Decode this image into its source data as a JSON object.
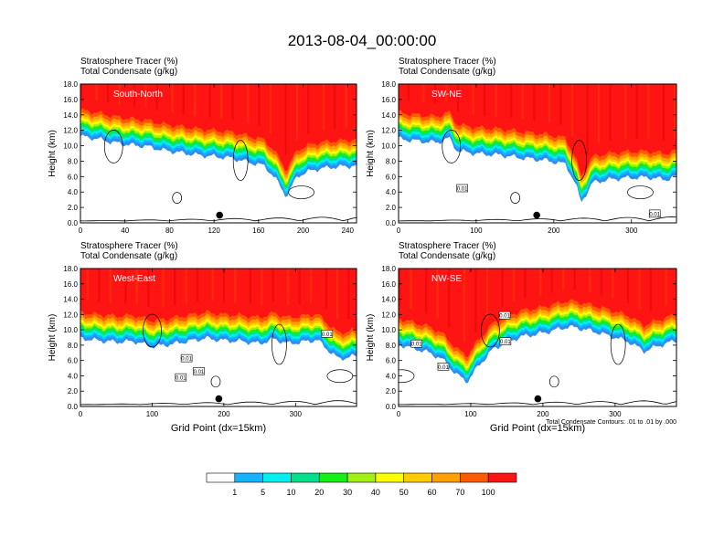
{
  "figure_title": "2013-08-04_00:00:00",
  "header_line1": "Stratosphere Tracer   (%)",
  "header_line2": "Total Condensate   (g/kg)",
  "contour_note": "Total Condensate Contours: .01 to .01 by .000",
  "colorbar": {
    "levels": [
      "1",
      "5",
      "10",
      "20",
      "30",
      "40",
      "50",
      "60",
      "70",
      "100"
    ],
    "colors": [
      "#ffffff",
      "#2f8cf0",
      "#14b4ff",
      "#00f0f0",
      "#00e08c",
      "#14f014",
      "#a0f014",
      "#ffff00",
      "#ffcc00",
      "#ffa000",
      "#ff5a00",
      "#ff1414"
    ]
  },
  "contour_label": "0.01",
  "chart_data": [
    {
      "type": "heatmap",
      "panel_label": "South-North",
      "ylabel": "Height (km)",
      "xlabel": "",
      "xlim": [
        0,
        248
      ],
      "ylim": [
        0,
        18
      ],
      "xticks": [
        "0",
        "40",
        "80",
        "120",
        "160",
        "200",
        "240"
      ],
      "yticks": [
        "0.0",
        "2.0",
        "4.0",
        "6.0",
        "8.0",
        "10.0",
        "12.0",
        "14.0",
        "16.0",
        "18.0"
      ],
      "marker": {
        "x": 125,
        "y": 1.0
      },
      "profile_x": [
        0,
        15,
        30,
        45,
        60,
        75,
        90,
        105,
        120,
        135,
        150,
        165,
        175,
        185,
        195,
        210,
        225,
        248
      ],
      "profile_y": [
        14.6,
        14.3,
        13.8,
        13.5,
        13.3,
        12.8,
        12.5,
        12.2,
        12.0,
        11.8,
        11.3,
        10.8,
        9.2,
        6.8,
        9.5,
        10.3,
        10.6,
        10.8
      ],
      "contour_labels": []
    },
    {
      "type": "heatmap",
      "panel_label": "SW-NE",
      "ylabel": "Height (km)",
      "xlabel": "",
      "xlim": [
        0,
        358
      ],
      "ylim": [
        0,
        18
      ],
      "xticks": [
        "0",
        "100",
        "200",
        "300"
      ],
      "yticks": [
        "0.0",
        "2.0",
        "4.0",
        "6.0",
        "8.0",
        "10.0",
        "12.0",
        "14.0",
        "16.0",
        "18.0"
      ],
      "marker": {
        "x": 178,
        "y": 1.0
      },
      "profile_x": [
        0,
        25,
        50,
        65,
        75,
        90,
        110,
        130,
        160,
        190,
        215,
        228,
        235,
        250,
        270,
        290,
        320,
        345,
        358
      ],
      "profile_y": [
        14.3,
        14.0,
        13.8,
        14.4,
        12.8,
        12.5,
        12.3,
        12.2,
        11.8,
        11.5,
        11.0,
        8.5,
        6.0,
        8.6,
        9.0,
        9.2,
        9.3,
        9.0,
        9.4
      ],
      "contour_labels": [
        {
          "x": 82,
          "y": 4.5
        },
        {
          "x": 330,
          "y": 1.2
        }
      ]
    },
    {
      "type": "heatmap",
      "panel_label": "West-East",
      "ylabel": "Height (km)",
      "xlabel": "Grid Point (dx=15km)",
      "xlim": [
        0,
        385
      ],
      "ylim": [
        0,
        18
      ],
      "xticks": [
        "0",
        "100",
        "200",
        "300"
      ],
      "yticks": [
        "0.0",
        "2.0",
        "4.0",
        "6.0",
        "8.0",
        "10.0",
        "12.0",
        "14.0",
        "16.0",
        "18.0"
      ],
      "marker": {
        "x": 193,
        "y": 1.0
      },
      "profile_x": [
        0,
        25,
        50,
        75,
        100,
        125,
        150,
        175,
        200,
        225,
        250,
        270,
        290,
        310,
        330,
        345,
        360,
        385
      ],
      "profile_y": [
        12.3,
        12.0,
        11.8,
        11.9,
        11.2,
        11.5,
        11.9,
        12.3,
        12.0,
        11.9,
        11.6,
        12.2,
        11.6,
        11.8,
        12.1,
        10.8,
        9.6,
        10.0
      ],
      "contour_labels": [
        {
          "x": 148,
          "y": 6.3
        },
        {
          "x": 165,
          "y": 4.6
        },
        {
          "x": 140,
          "y": 3.8
        },
        {
          "x": 344,
          "y": 9.5
        }
      ]
    },
    {
      "type": "heatmap",
      "panel_label": "NW-SE",
      "ylabel": "Height (km)",
      "xlabel": "Grid Point (dx=15km)",
      "xlim": [
        0,
        385
      ],
      "ylim": [
        0,
        18
      ],
      "xticks": [
        "0",
        "100",
        "200",
        "300"
      ],
      "yticks": [
        "0.0",
        "2.0",
        "4.0",
        "6.0",
        "8.0",
        "10.0",
        "12.0",
        "14.0",
        "16.0",
        "18.0"
      ],
      "marker": {
        "x": 193,
        "y": 1.0
      },
      "profile_x": [
        0,
        20,
        40,
        60,
        80,
        95,
        110,
        130,
        150,
        170,
        190,
        210,
        235,
        250,
        270,
        300,
        320,
        340,
        360,
        385
      ],
      "profile_y": [
        11.5,
        11.0,
        10.5,
        9.6,
        7.6,
        6.6,
        8.6,
        10.8,
        11.8,
        12.5,
        12.8,
        13.2,
        13.8,
        13.6,
        13.2,
        12.4,
        11.8,
        10.6,
        11.3,
        12.0
      ],
      "contour_labels": [
        {
          "x": 147,
          "y": 11.9
        },
        {
          "x": 148,
          "y": 8.5
        },
        {
          "x": 25,
          "y": 8.2
        },
        {
          "x": 62,
          "y": 5.2
        }
      ]
    }
  ]
}
